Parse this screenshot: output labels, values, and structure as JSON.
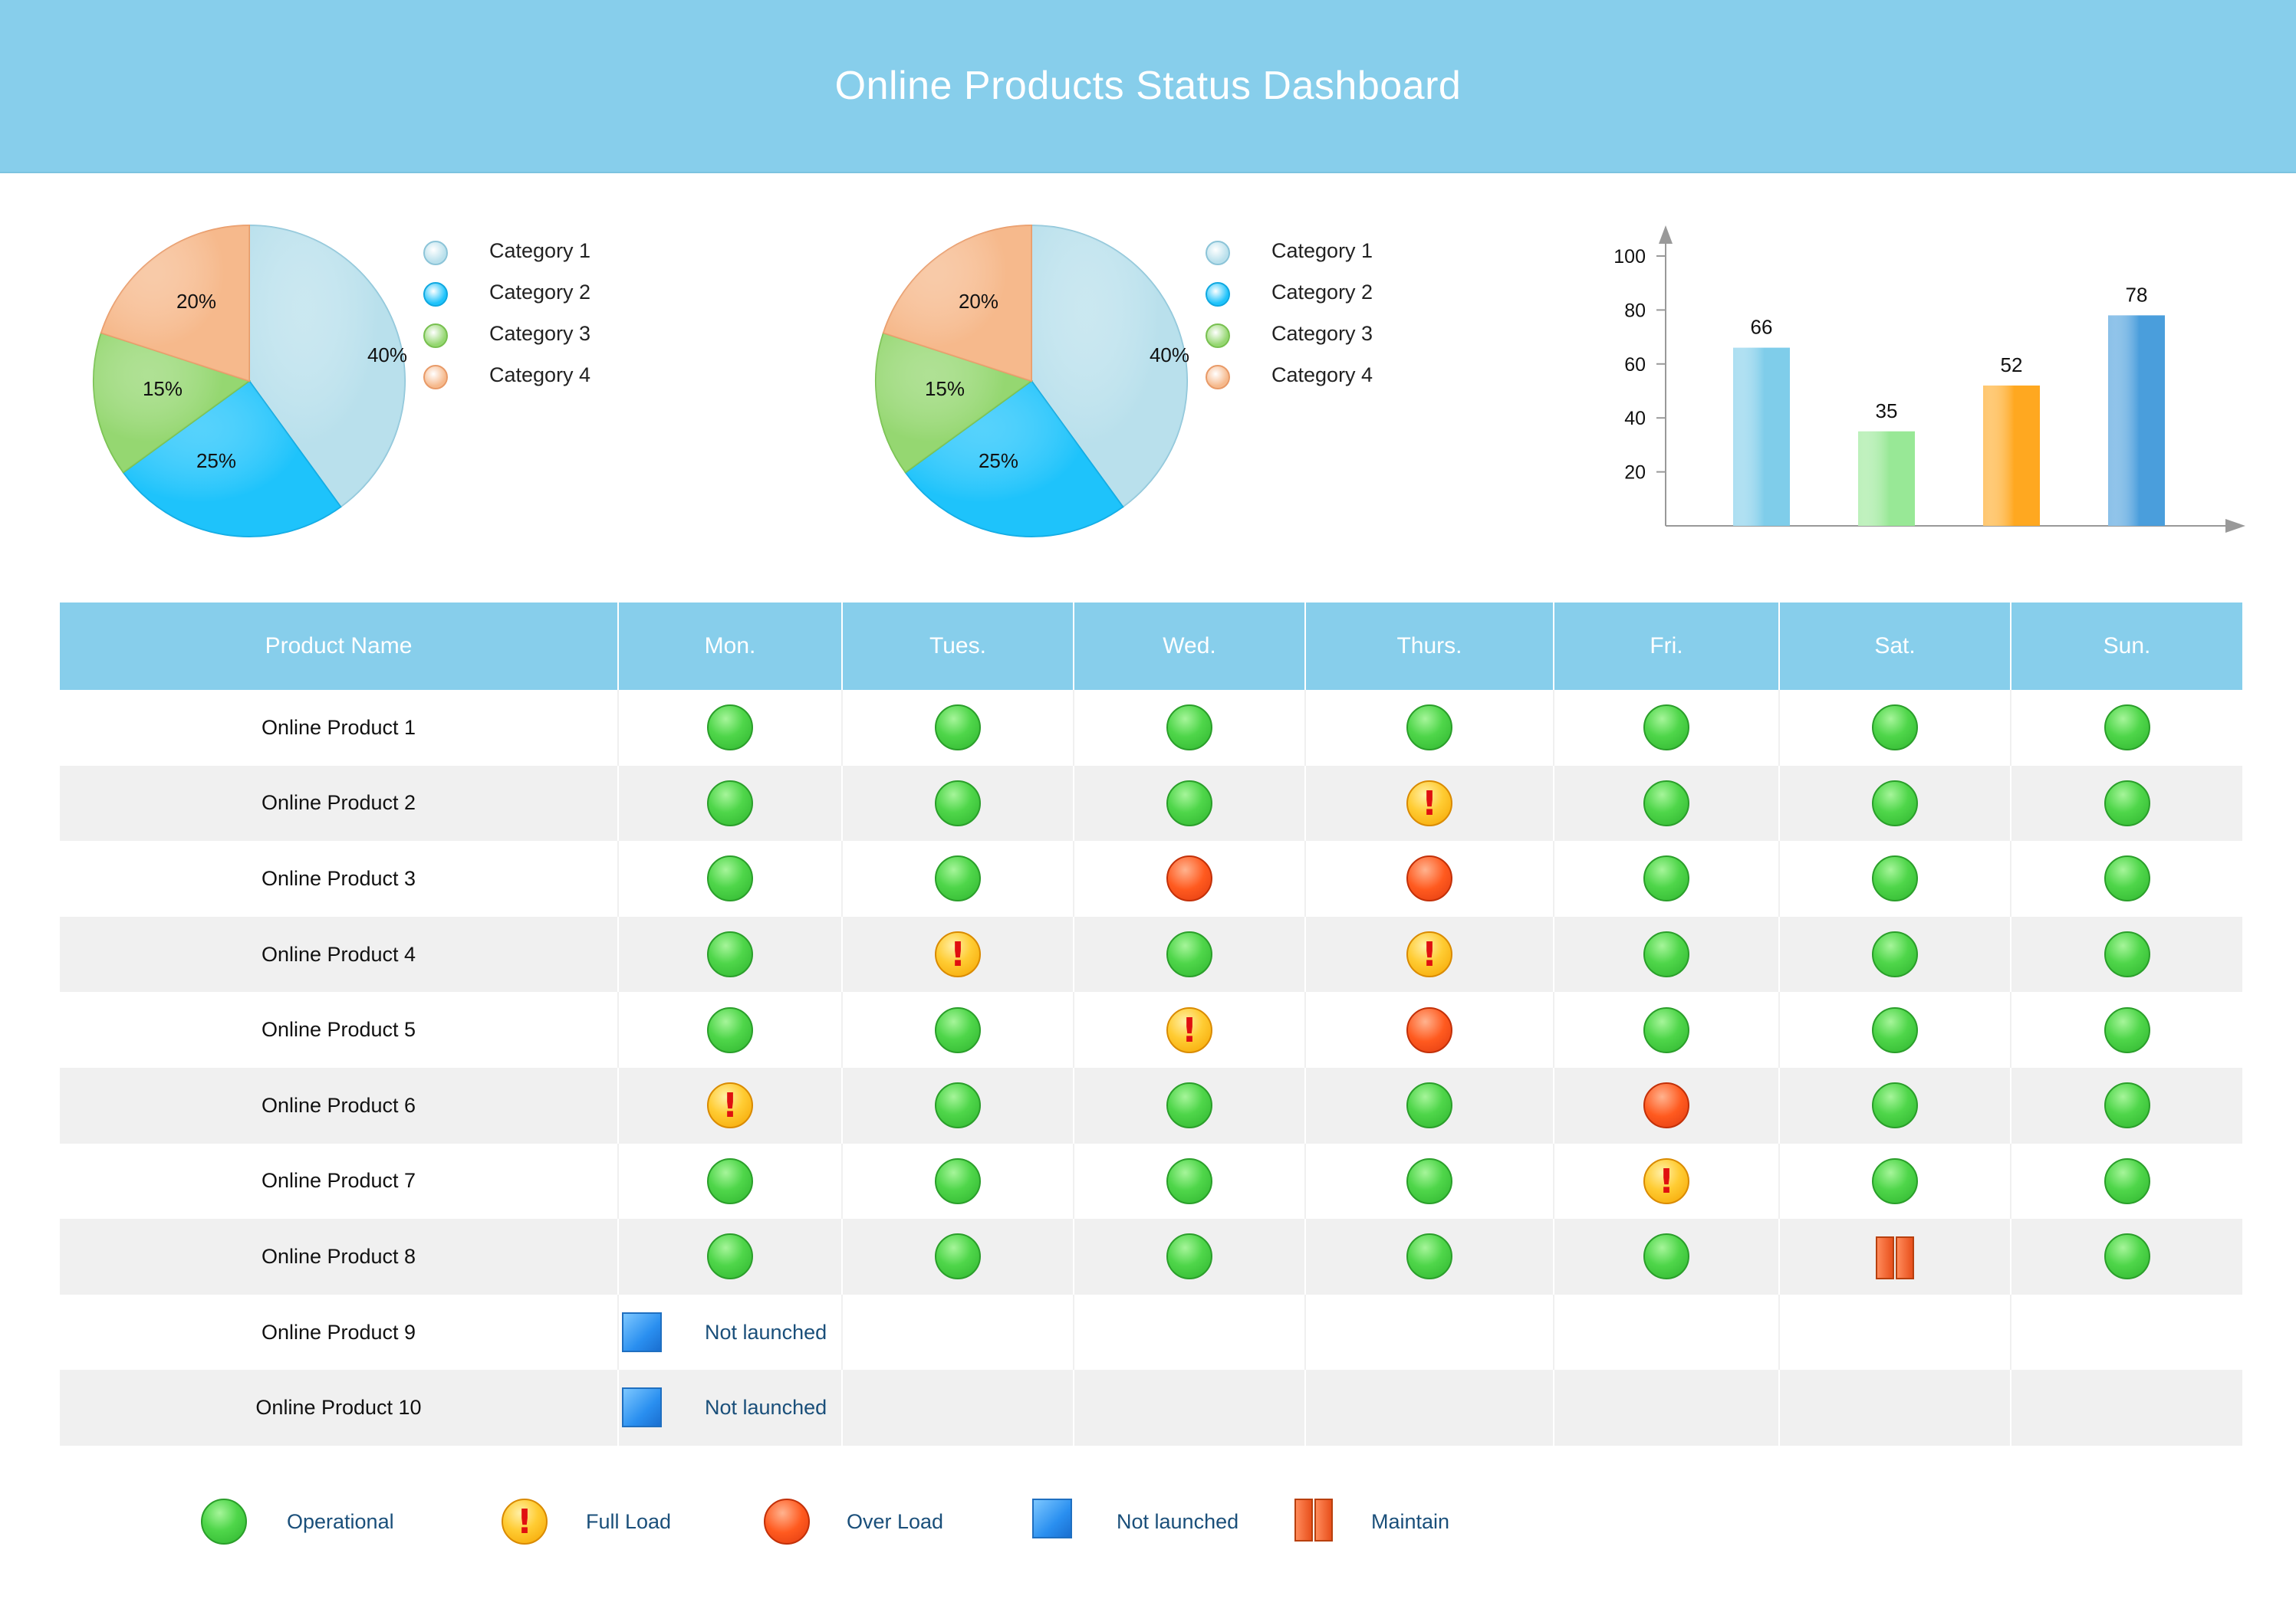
{
  "header": {
    "title": "Online Products Status Dashboard"
  },
  "pie_legend": [
    "Category 1",
    "Category 2",
    "Category 3",
    "Category 4"
  ],
  "colors": {
    "header": "#87ceeb",
    "cat1": "#b9e0ec",
    "cat2": "#1ec3fb",
    "cat3": "#95d771",
    "cat4": "#f6b98c",
    "operational": "#3ccb3c",
    "full_load": "#ffc21a",
    "over_load": "#ff5420",
    "not_launched": "#2a8ff0",
    "maintain": "#e8501c"
  },
  "chart_data": [
    {
      "type": "pie",
      "categories": [
        "Category 1",
        "Category 2",
        "Category 3",
        "Category 4"
      ],
      "values": [
        40,
        25,
        15,
        20
      ],
      "labels": [
        "40%",
        "25%",
        "15%",
        "20%"
      ]
    },
    {
      "type": "pie",
      "categories": [
        "Category 1",
        "Category 2",
        "Category 3",
        "Category 4"
      ],
      "values": [
        40,
        25,
        15,
        20
      ],
      "labels": [
        "40%",
        "25%",
        "15%",
        "20%"
      ]
    },
    {
      "type": "bar",
      "categories": [
        "",
        "",
        "",
        ""
      ],
      "values": [
        66,
        35,
        52,
        78
      ],
      "bar_colors": [
        "#7fcdea",
        "#98e896",
        "#ffa820",
        "#4a9edc"
      ],
      "yticks": [
        20,
        40,
        60,
        80,
        100
      ],
      "ylim": [
        0,
        100
      ],
      "grid": false
    }
  ],
  "table": {
    "headers": [
      "Product Name",
      "Mon.",
      "Tues.",
      "Wed.",
      "Thurs.",
      "Fri.",
      "Sat.",
      "Sun."
    ],
    "rows": [
      {
        "name": "Online Product 1",
        "status": [
          "op",
          "op",
          "op",
          "op",
          "op",
          "op",
          "op"
        ]
      },
      {
        "name": "Online Product 2",
        "status": [
          "op",
          "op",
          "op",
          "full",
          "op",
          "op",
          "op"
        ]
      },
      {
        "name": "Online Product 3",
        "status": [
          "op",
          "op",
          "over",
          "over",
          "op",
          "op",
          "op"
        ]
      },
      {
        "name": "Online Product 4",
        "status": [
          "op",
          "full",
          "op",
          "full",
          "op",
          "op",
          "op"
        ]
      },
      {
        "name": "Online Product 5",
        "status": [
          "op",
          "op",
          "full",
          "over",
          "op",
          "op",
          "op"
        ]
      },
      {
        "name": "Online Product 6",
        "status": [
          "full",
          "op",
          "op",
          "op",
          "over",
          "op",
          "op"
        ]
      },
      {
        "name": "Online Product 7",
        "status": [
          "op",
          "op",
          "op",
          "op",
          "full",
          "op",
          "op"
        ]
      },
      {
        "name": "Online Product 8",
        "status": [
          "op",
          "op",
          "op",
          "op",
          "op",
          "mt",
          "op"
        ]
      },
      {
        "name": "Online Product 9",
        "not_launched": "Not launched"
      },
      {
        "name": "Online Product 10",
        "not_launched": "Not launched"
      }
    ]
  },
  "status_legend": [
    {
      "key": "op",
      "label": "Operational"
    },
    {
      "key": "full",
      "label": "Full Load"
    },
    {
      "key": "over",
      "label": "Over Load"
    },
    {
      "key": "nl",
      "label": "Not launched"
    },
    {
      "key": "mt",
      "label": "Maintain"
    }
  ]
}
